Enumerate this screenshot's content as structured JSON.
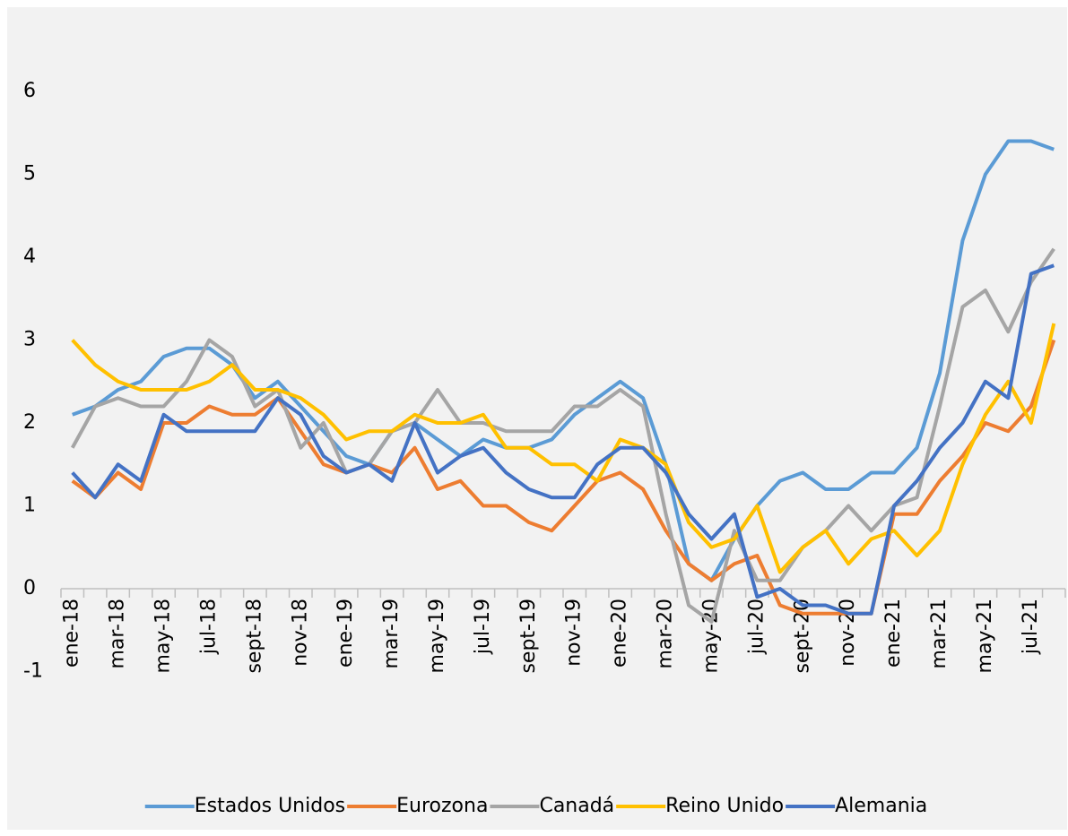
{
  "chart_data": {
    "type": "line",
    "categories": [
      "ene-18",
      null,
      "mar-18",
      null,
      "may-18",
      null,
      "jul-18",
      null,
      "sept-18",
      null,
      "nov-18",
      null,
      "ene-19",
      null,
      "mar-19",
      null,
      "may-19",
      null,
      "jul-19",
      null,
      "sept-19",
      null,
      "nov-19",
      null,
      "ene-20",
      null,
      "mar-20",
      null,
      "may-20",
      null,
      "jul-20",
      null,
      "sept-20",
      null,
      "nov-20",
      null,
      "ene-21",
      null,
      "mar-21",
      null,
      "may-21",
      null,
      "jul-21",
      null
    ],
    "series": [
      {
        "name": "Estados Unidos",
        "color": "#5b9bd5",
        "values": [
          2.1,
          2.2,
          2.4,
          2.5,
          2.8,
          2.9,
          2.9,
          2.7,
          2.3,
          2.5,
          2.2,
          1.9,
          1.6,
          1.5,
          1.9,
          2.0,
          1.8,
          1.6,
          1.8,
          1.7,
          1.7,
          1.8,
          2.1,
          2.3,
          2.5,
          2.3,
          1.5,
          0.3,
          0.1,
          0.6,
          1.0,
          1.3,
          1.4,
          1.2,
          1.2,
          1.4,
          1.4,
          1.7,
          2.6,
          4.2,
          5.0,
          5.4,
          5.4,
          5.3
        ]
      },
      {
        "name": "Eurozona",
        "color": "#ed7d31",
        "values": [
          1.3,
          1.1,
          1.4,
          1.2,
          2.0,
          2.0,
          2.2,
          2.1,
          2.1,
          2.3,
          1.9,
          1.5,
          1.4,
          1.5,
          1.4,
          1.7,
          1.2,
          1.3,
          1.0,
          1.0,
          0.8,
          0.7,
          1.0,
          1.3,
          1.4,
          1.2,
          0.7,
          0.3,
          0.1,
          0.3,
          0.4,
          -0.2,
          -0.3,
          -0.3,
          -0.3,
          -0.3,
          0.9,
          0.9,
          1.3,
          1.6,
          2.0,
          1.9,
          2.2,
          3.0
        ]
      },
      {
        "name": "Canadá",
        "color": "#a5a5a5",
        "values": [
          1.7,
          2.2,
          2.3,
          2.2,
          2.2,
          2.5,
          3.0,
          2.8,
          2.2,
          2.4,
          1.7,
          2.0,
          1.4,
          1.5,
          1.9,
          2.0,
          2.4,
          2.0,
          2.0,
          1.9,
          1.9,
          1.9,
          2.2,
          2.2,
          2.4,
          2.2,
          0.9,
          -0.2,
          -0.4,
          0.7,
          0.1,
          0.1,
          0.5,
          0.7,
          1.0,
          0.7,
          1.0,
          1.1,
          2.2,
          3.4,
          3.6,
          3.1,
          3.7,
          4.1
        ]
      },
      {
        "name": "Reino Unido",
        "color": "#ffc000",
        "values": [
          3.0,
          2.7,
          2.5,
          2.4,
          2.4,
          2.4,
          2.5,
          2.7,
          2.4,
          2.4,
          2.3,
          2.1,
          1.8,
          1.9,
          1.9,
          2.1,
          2.0,
          2.0,
          2.1,
          1.7,
          1.7,
          1.5,
          1.5,
          1.3,
          1.8,
          1.7,
          1.5,
          0.8,
          0.5,
          0.6,
          1.0,
          0.2,
          0.5,
          0.7,
          0.3,
          0.6,
          0.7,
          0.4,
          0.7,
          1.5,
          2.1,
          2.5,
          2.0,
          3.2
        ]
      },
      {
        "name": "Alemania",
        "color": "#4472c4",
        "values": [
          1.4,
          1.1,
          1.5,
          1.3,
          2.1,
          1.9,
          1.9,
          1.9,
          1.9,
          2.3,
          2.1,
          1.6,
          1.4,
          1.5,
          1.3,
          2.0,
          1.4,
          1.6,
          1.7,
          1.4,
          1.2,
          1.1,
          1.1,
          1.5,
          1.7,
          1.7,
          1.4,
          0.9,
          0.6,
          0.9,
          -0.1,
          0.0,
          -0.2,
          -0.2,
          -0.3,
          -0.3,
          1.0,
          1.3,
          1.7,
          2.0,
          2.5,
          2.3,
          3.8,
          3.9
        ]
      }
    ],
    "ylim": [
      -1,
      7
    ],
    "yticks": [
      -1,
      0,
      1,
      2,
      3,
      4,
      5,
      6
    ],
    "grid": false,
    "legend": "bottom"
  }
}
